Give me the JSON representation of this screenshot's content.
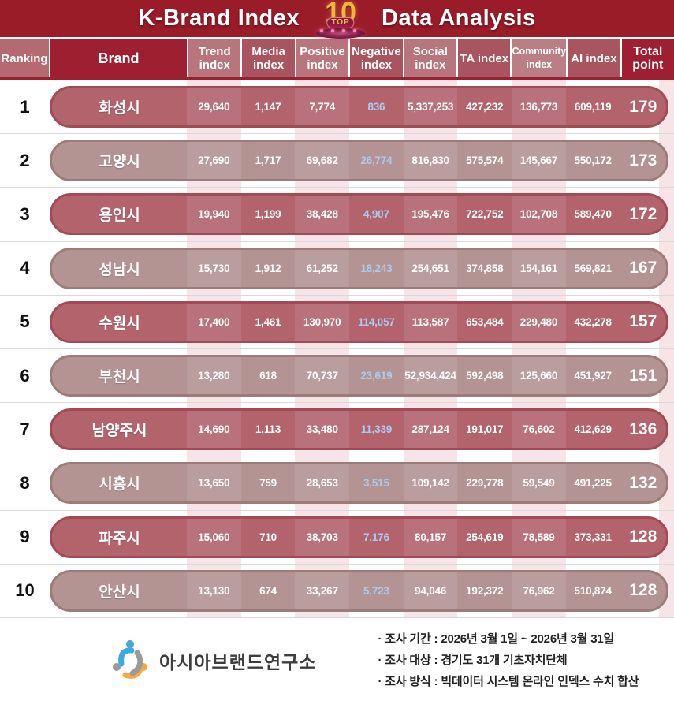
{
  "title": {
    "left": "K-Brand Index",
    "right": "Data Analysis"
  },
  "badge": {
    "number": "10",
    "label": "TOP"
  },
  "columns": [
    "Ranking",
    "Brand",
    "Trend index",
    "Media index",
    "Positive index",
    "Negative index",
    "Social index",
    "TA index",
    "Community index",
    "AI index",
    "Total point"
  ],
  "rows": [
    {
      "rank": "1",
      "brand": "화성시",
      "trend": "29,640",
      "media": "1,147",
      "positive": "7,774",
      "negative": "836",
      "social": "5,337,253",
      "ta": "427,232",
      "community": "136,773",
      "ai": "609,119",
      "total": "179"
    },
    {
      "rank": "2",
      "brand": "고양시",
      "trend": "27,690",
      "media": "1,717",
      "positive": "69,682",
      "negative": "26,774",
      "social": "816,830",
      "ta": "575,574",
      "community": "145,667",
      "ai": "550,172",
      "total": "173"
    },
    {
      "rank": "3",
      "brand": "용인시",
      "trend": "19,940",
      "media": "1,199",
      "positive": "38,428",
      "negative": "4,907",
      "social": "195,476",
      "ta": "722,752",
      "community": "102,708",
      "ai": "589,470",
      "total": "172"
    },
    {
      "rank": "4",
      "brand": "성남시",
      "trend": "15,730",
      "media": "1,912",
      "positive": "61,252",
      "negative": "18,243",
      "social": "254,651",
      "ta": "374,858",
      "community": "154,161",
      "ai": "569,821",
      "total": "167"
    },
    {
      "rank": "5",
      "brand": "수원시",
      "trend": "17,400",
      "media": "1,461",
      "positive": "130,970",
      "negative": "114,057",
      "social": "113,587",
      "ta": "653,484",
      "community": "229,480",
      "ai": "432,278",
      "total": "157"
    },
    {
      "rank": "6",
      "brand": "부천시",
      "trend": "13,280",
      "media": "618",
      "positive": "70,737",
      "negative": "23,619",
      "social": "52,934,424",
      "ta": "592,498",
      "community": "125,660",
      "ai": "451,927",
      "total": "151"
    },
    {
      "rank": "7",
      "brand": "남양주시",
      "trend": "14,690",
      "media": "1,113",
      "positive": "33,480",
      "negative": "11,339",
      "social": "287,124",
      "ta": "191,017",
      "community": "76,602",
      "ai": "412,629",
      "total": "136"
    },
    {
      "rank": "8",
      "brand": "시흥시",
      "trend": "13,650",
      "media": "759",
      "positive": "28,653",
      "negative": "3,515",
      "social": "109,142",
      "ta": "229,778",
      "community": "59,549",
      "ai": "491,225",
      "total": "132"
    },
    {
      "rank": "9",
      "brand": "파주시",
      "trend": "15,060",
      "media": "710",
      "positive": "38,703",
      "negative": "7,176",
      "social": "80,157",
      "ta": "254,619",
      "community": "78,589",
      "ai": "373,331",
      "total": "128"
    },
    {
      "rank": "10",
      "brand": "안산시",
      "trend": "13,130",
      "media": "674",
      "positive": "33,267",
      "negative": "5,723",
      "social": "94,046",
      "ta": "192,372",
      "community": "76,962",
      "ai": "510,874",
      "total": "128"
    }
  ],
  "footer": {
    "org_name": "아시아브랜드연구소",
    "logo_icon": "asia-brand-institute-logo",
    "notes": [
      "· 조사 기간 : 2026년 3월 1일 ~ 2026년 3월 31일",
      "· 조사 대상 : 경기도 31개 기초자치단체",
      "· 조사 방식 : 빅데이터 시스템 온라인 인덱스 수치 합산"
    ]
  },
  "colors": {
    "banner_red": "#9a1c28",
    "header_dark": "#9e1f2f",
    "header_base": "#a8555f",
    "header_light": "#b8757b",
    "odd_row_fill": "#b2636c",
    "odd_row_border": "#a04b56",
    "even_row_fill": "#b39492",
    "even_row_border": "#9c7c76",
    "negative_value_blue": "#abcbee",
    "stripe_pink": "#f7e4e7",
    "badge_gold": "#f3b33c"
  },
  "chart_data": {
    "type": "table",
    "title": "K-Brand Index TOP 10 Data Analysis",
    "columns": [
      "Ranking",
      "Brand",
      "Trend index",
      "Media index",
      "Positive index",
      "Negative index",
      "Social index",
      "TA index",
      "Community index",
      "AI index",
      "Total point"
    ],
    "rows": [
      [
        1,
        "화성시",
        29640,
        1147,
        7774,
        836,
        5337253,
        427232,
        136773,
        609119,
        179
      ],
      [
        2,
        "고양시",
        27690,
        1717,
        69682,
        26774,
        816830,
        575574,
        145667,
        550172,
        173
      ],
      [
        3,
        "용인시",
        19940,
        1199,
        38428,
        4907,
        195476,
        722752,
        102708,
        589470,
        172
      ],
      [
        4,
        "성남시",
        15730,
        1912,
        61252,
        18243,
        254651,
        374858,
        154161,
        569821,
        167
      ],
      [
        5,
        "수원시",
        17400,
        1461,
        130970,
        114057,
        113587,
        653484,
        229480,
        432278,
        157
      ],
      [
        6,
        "부천시",
        13280,
        618,
        70737,
        23619,
        52934424,
        592498,
        125660,
        451927,
        151
      ],
      [
        7,
        "남양주시",
        14690,
        1113,
        33480,
        11339,
        287124,
        191017,
        76602,
        412629,
        136
      ],
      [
        8,
        "시흥시",
        13650,
        759,
        28653,
        3515,
        109142,
        229778,
        59549,
        491225,
        132
      ],
      [
        9,
        "파주시",
        15060,
        710,
        38703,
        7176,
        80157,
        254619,
        78589,
        373331,
        128
      ],
      [
        10,
        "안산시",
        13130,
        674,
        33267,
        5723,
        94046,
        192372,
        76962,
        510874,
        128
      ]
    ],
    "notes": [
      "조사 기간 : 2026년 3월 1일 ~ 2026년 3월 31일",
      "조사 대상 : 경기도 31개 기초자치단체",
      "조사 방식 : 빅데이터 시스템 온라인 인덱스 수치 합산"
    ]
  }
}
